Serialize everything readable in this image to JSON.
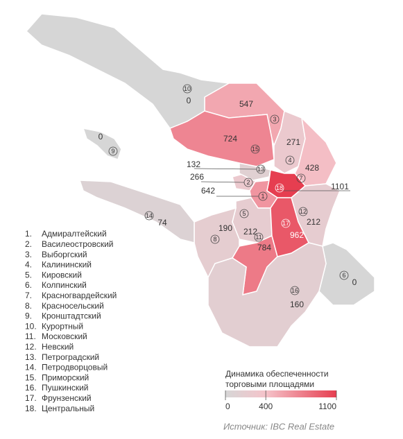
{
  "districts": [
    {
      "number": "1",
      "list_number": "1.",
      "name": "Адмиралтейский",
      "value": 642
    },
    {
      "number": "2",
      "list_number": "2.",
      "name": "Василеостровский",
      "value": 266
    },
    {
      "number": "3",
      "list_number": "3.",
      "name": "Выборгский",
      "value": 547
    },
    {
      "number": "4",
      "list_number": "4.",
      "name": "Калининский",
      "value": 271
    },
    {
      "number": "5",
      "list_number": "5.",
      "name": "Кировский",
      "value": 212
    },
    {
      "number": "6",
      "list_number": "6.",
      "name": "Колпинский",
      "value": 0
    },
    {
      "number": "7",
      "list_number": "7.",
      "name": "Красногвардейский",
      "value": 428
    },
    {
      "number": "8",
      "list_number": "8.",
      "name": "Красносельский",
      "value": 190
    },
    {
      "number": "9",
      "list_number": "9.",
      "name": "Кронштадтский",
      "value": 0
    },
    {
      "number": "10",
      "list_number": "10.",
      "name": "Курортный",
      "value": 0
    },
    {
      "number": "11",
      "list_number": "11.",
      "name": "Московский",
      "value": 784
    },
    {
      "number": "12",
      "list_number": "12.",
      "name": "Невский",
      "value": 212
    },
    {
      "number": "13",
      "list_number": "13.",
      "name": "Петроградский",
      "value": 132
    },
    {
      "number": "14",
      "list_number": "14.",
      "name": "Петродворцовый",
      "value": 74
    },
    {
      "number": "15",
      "list_number": "15.",
      "name": "Приморский",
      "value": 724
    },
    {
      "number": "16",
      "list_number": "16.",
      "name": "Пушкинский",
      "value": 160
    },
    {
      "number": "17",
      "list_number": "17.",
      "name": "Фрунзенский",
      "value": 962
    },
    {
      "number": "18",
      "list_number": "18.",
      "name": "Центральный",
      "value": 1101
    }
  ],
  "colorbar": {
    "title_lines": [
      "Динамика обеспеченности",
      "торговыми площадями"
    ],
    "lim": [
      0,
      1100
    ],
    "ticks": [
      0,
      400,
      1100
    ],
    "colors": [
      "#d6d6d6",
      "#f5c3ca",
      "#e63e50"
    ]
  },
  "source": "Источник: IBC Real Estate"
}
